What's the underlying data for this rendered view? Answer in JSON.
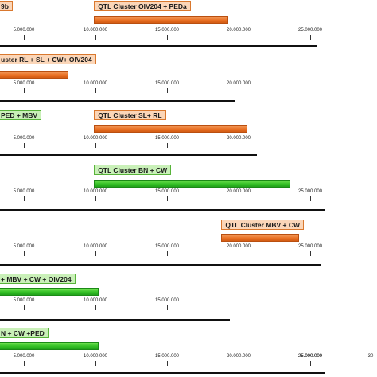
{
  "rows": [
    {
      "label": "9b",
      "color": "orange",
      "bar_start": -1,
      "bar_end": -1,
      "label_start": -1,
      "show_ticks": false,
      "axis_end": 0
    },
    {
      "label": "QTL Cluster OIV204 + PEDa",
      "color": "orange",
      "bar_start": 9900000,
      "bar_end": 19300000,
      "label_start": 9900000,
      "show_ticks": true,
      "axis_end": 25500000
    },
    {
      "label": "uster RL + SL + CW+ OIV204",
      "color": "orange",
      "bar_start": -1000000,
      "bar_end": 8100000,
      "label_start": -1000000,
      "show_ticks": true,
      "axis_end": 19700000
    },
    {
      "label": "QTL Cluster SL+ RL",
      "color": "orange",
      "bar_start": 9900000,
      "bar_end": 20600000,
      "label_start": 9900000,
      "show_ticks": true,
      "axis_end": 21300000
    },
    {
      "label": "QTL Cluster BN + CW",
      "color": "green",
      "bar_start": 9900000,
      "bar_end": 23600000,
      "label_start": 9900000,
      "show_ticks": true,
      "axis_end": 26000000
    },
    {
      "label": "QTL Cluster MBV + CW",
      "color": "orange",
      "bar_start": 18800000,
      "bar_end": 24200000,
      "label_start": 18800000,
      "show_ticks": true,
      "axis_end": 25800000
    },
    {
      "label": "+ MBV + CW +  OIV204",
      "color": "green",
      "bar_start": -1000000,
      "bar_end": 10200000,
      "label_start": -1000000,
      "show_ticks": true,
      "axis_end": 19400000
    },
    {
      "label": "N + CW +PED",
      "color": "green",
      "bar_start": -1000000,
      "bar_end": 10200000,
      "label_start": -1000000,
      "show_ticks": true,
      "axis_end": 26000000
    }
  ],
  "ped_mbv_label": "PED + MBV",
  "ticks": [
    {
      "value": 5000000,
      "label": "5.000.000"
    },
    {
      "value": 10000000,
      "label": "10.000.000"
    },
    {
      "value": 15000000,
      "label": "15.000.000"
    },
    {
      "value": 20000000,
      "label": "20.000.000"
    },
    {
      "value": 25000000,
      "label": "25.000.000"
    },
    {
      "value": 30000000,
      "label": "30"
    }
  ],
  "colors": {
    "orange": "#e96f22",
    "green": "#33bf25"
  }
}
